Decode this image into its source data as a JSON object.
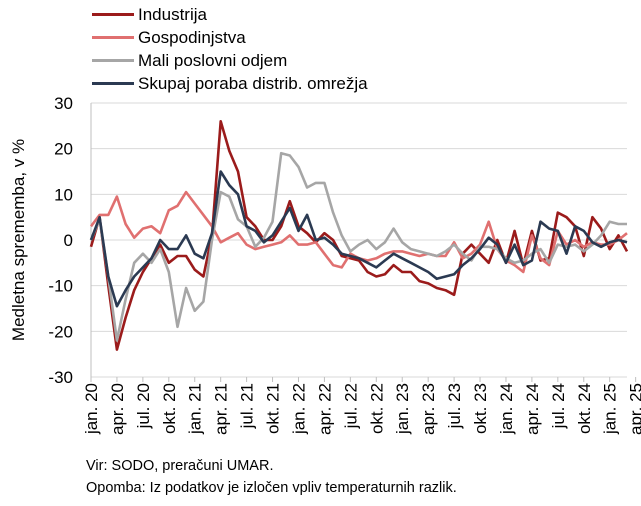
{
  "chart_data": {
    "type": "line",
    "ylabel": "Medletna sprememba, v %",
    "ylim": [
      -30,
      30
    ],
    "yticks": [
      -30,
      -20,
      -10,
      0,
      10,
      20,
      30
    ],
    "xtick_labels": [
      "jan. 20",
      "apr. 20",
      "jul. 20",
      "okt. 20",
      "jan. 21",
      "apr. 21",
      "jul. 21",
      "okt. 21",
      "jan. 22",
      "apr. 22",
      "jul. 22",
      "okt. 22",
      "jan. 23",
      "apr. 23",
      "jul. 23",
      "okt. 23",
      "jan. 24",
      "apr. 24",
      "jul. 24",
      "okt. 24",
      "jan. 25",
      "apr. 25"
    ],
    "x_start": "jan. 20",
    "series": [
      {
        "name": "Industrija",
        "color": "#9b1b1b",
        "values": [
          -1.5,
          5,
          -10,
          -24,
          -17,
          -11,
          -7,
          -4,
          -1,
          -5,
          -3.5,
          -3.5,
          -6.5,
          -8,
          1,
          26,
          19.5,
          15,
          5,
          3,
          0,
          0,
          3,
          8.5,
          3,
          1.5,
          -0.5,
          1.5,
          0,
          -3.5,
          -4,
          -4.5,
          -7,
          -8,
          -7.5,
          -5.5,
          -7,
          -7,
          -9,
          -9.5,
          -10.5,
          -11,
          -12,
          -3,
          -1,
          -3,
          -5,
          0,
          -5,
          2,
          -5.5,
          2,
          -4.5,
          -4,
          6,
          5,
          3,
          -3.5,
          5,
          2.5,
          -2,
          1,
          -2.5
        ]
      },
      {
        "name": "Gospodinjstva",
        "color": "#e07070",
        "values": [
          3,
          5.5,
          5.5,
          9.5,
          3.5,
          0.5,
          2.5,
          3,
          1.5,
          6.5,
          7.5,
          10.5,
          8,
          5.5,
          3,
          -0.5,
          0.5,
          1.5,
          -1,
          -2,
          -1.5,
          -1,
          -0.5,
          1,
          -1,
          -1,
          -0.5,
          -3,
          -5.5,
          -6,
          -3,
          -4,
          -4.5,
          -4,
          -3,
          -2.5,
          -2.5,
          -3,
          -3.5,
          -3,
          -3.5,
          -3.5,
          -0.5,
          -4,
          -3,
          -1,
          4,
          -2,
          -4.5,
          -5.5,
          -7,
          1,
          -4,
          -5.5,
          2,
          -1,
          0,
          -1.5,
          -0.5,
          -1,
          -1,
          0,
          1.5
        ]
      },
      {
        "name": "Mali poslovni odjem",
        "color": "#a6a6a6",
        "values": [
          0,
          4.5,
          -8,
          -22,
          -13,
          -5,
          -3,
          -5,
          -2,
          -7,
          -19,
          -10.5,
          -15.5,
          -13.5,
          0,
          10.5,
          9.5,
          4.5,
          3,
          -1.5,
          0.5,
          4,
          19,
          18.5,
          16,
          11.5,
          12.5,
          12.5,
          6,
          1,
          -2.5,
          -1,
          0,
          -2,
          -0.5,
          2.5,
          -0.5,
          -2,
          -2.5,
          -3,
          -3.5,
          -2.5,
          -1,
          -3,
          -4.5,
          -1.5,
          -1.5,
          -2,
          -4,
          -5,
          -4.5,
          -3,
          -2,
          -5,
          -1,
          -1.5,
          -1,
          -2.5,
          -1,
          1,
          4,
          3.5,
          3.5
        ]
      },
      {
        "name": "Skupaj poraba distrib. omrežja",
        "color": "#2b3a52",
        "values": [
          0,
          5,
          -8,
          -14.5,
          -11,
          -8,
          -6,
          -4,
          0,
          -2,
          -2,
          1,
          -3,
          -4,
          1.5,
          15,
          12,
          10,
          3,
          2,
          -0.5,
          1,
          4,
          7,
          2,
          5.5,
          0,
          0.5,
          -1,
          -3,
          -3.5,
          -4,
          -5,
          -6,
          -4.5,
          -3,
          -4,
          -5,
          -6,
          -7,
          -8.5,
          -8,
          -7.5,
          -5.5,
          -4,
          -2,
          0.5,
          -1,
          -5,
          -1,
          -5.5,
          -4.5,
          4,
          2.5,
          2,
          -3,
          3,
          2,
          -0.5,
          -1.5,
          -0.5,
          0,
          -0.5
        ]
      }
    ]
  },
  "legend": {
    "items": [
      {
        "label": "Industrija",
        "color": "#9b1b1b"
      },
      {
        "label": "Gospodinjstva",
        "color": "#e07070"
      },
      {
        "label": "Mali poslovni odjem",
        "color": "#a6a6a6"
      },
      {
        "label": "Skupaj poraba distrib. omrežja",
        "color": "#2b3a52"
      }
    ]
  },
  "notes": {
    "source": "Vir: SODO, preračuni UMAR.",
    "remark": "Opomba: Iz podatkov je izločen vpliv temperaturnih razlik."
  }
}
